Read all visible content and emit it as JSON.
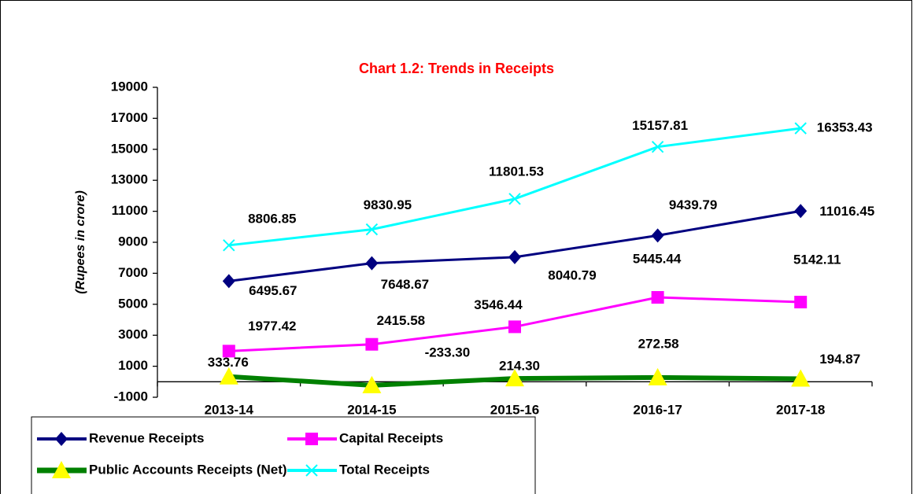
{
  "chart_data": {
    "type": "line",
    "title": "Chart 1.2: Trends in Receipts",
    "y_label": "(Rupees in crore)",
    "categories": [
      "2013-14",
      "2014-15",
      "2015-16",
      "2016-17",
      "2017-18"
    ],
    "ylim": [
      -1000,
      19000
    ],
    "yticks": [
      -1000,
      1000,
      3000,
      5000,
      7000,
      9000,
      11000,
      13000,
      15000,
      17000,
      19000
    ],
    "series": [
      {
        "name": "Revenue Receipts",
        "color": "#000080",
        "marker": "diamond",
        "values": [
          6495.67,
          7648.67,
          8040.79,
          9439.79,
          11016.45
        ],
        "value_labels": [
          "6495.67",
          "7648.67",
          "8040.79",
          "9439.79",
          "11016.45"
        ]
      },
      {
        "name": "Capital Receipts",
        "color": "#ff00ff",
        "marker": "square",
        "values": [
          1977.42,
          2415.58,
          3546.44,
          5445.44,
          5142.11
        ],
        "value_labels": [
          "1977.42",
          "2415.58",
          "3546.44",
          "5445.44",
          "5142.11"
        ]
      },
      {
        "name": "Public Accounts Receipts (Net)",
        "color": "#008000",
        "marker": "triangle",
        "marker_color": "#ffff00",
        "values": [
          333.76,
          -233.3,
          214.3,
          272.58,
          194.87
        ],
        "value_labels": [
          "333.76",
          "-233.30",
          "214.30",
          "272.58",
          "194.87"
        ]
      },
      {
        "name": "Total Receipts",
        "color": "#00ffff",
        "marker": "x",
        "values": [
          8806.85,
          9830.95,
          11801.53,
          15157.81,
          16353.43
        ],
        "value_labels": [
          "8806.85",
          "9830.95",
          "11801.53",
          "15157.81",
          "16353.43"
        ]
      }
    ]
  }
}
